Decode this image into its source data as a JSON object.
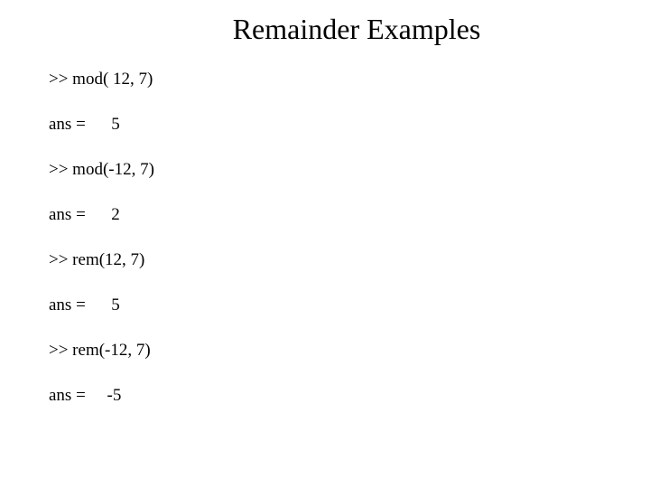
{
  "title": "Remainder Examples",
  "lines": {
    "l1": ">> mod( 12, 7)",
    "l2": "ans =      5",
    "l3": ">> mod(-12, 7)",
    "l4": "ans =      2",
    "l5": ">> rem(12, 7)",
    "l6": "ans =      5",
    "l7": ">> rem(-12, 7)",
    "l8": "ans =     -5"
  }
}
